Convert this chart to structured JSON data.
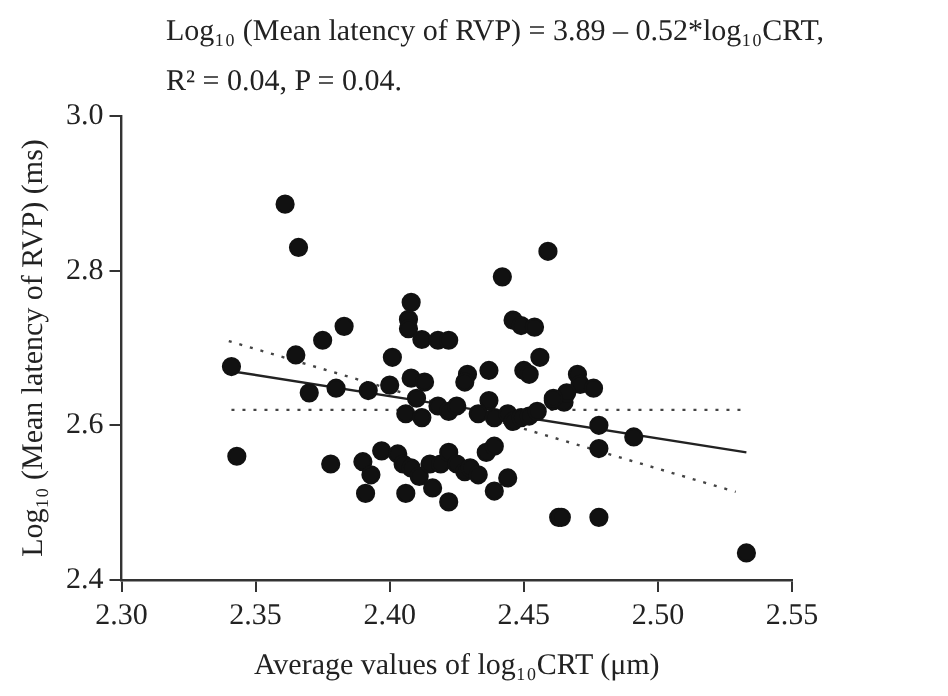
{
  "chart_data": {
    "type": "scatter",
    "title": "Log₁₀ (Mean latency of RVP) = 3.89 – 0.52*log₁₀CRT,",
    "subtitle": "R² = 0.04, P = 0.04.",
    "xlabel": "Average values of log₁₀CRT (μm)",
    "ylabel": "Log₁₀ (Mean latency of RVP) (ms)",
    "xlim": [
      2.3,
      2.55
    ],
    "xticks": [
      {
        "value": 2.3,
        "label": "2.30"
      },
      {
        "value": 2.35,
        "label": "2.35"
      },
      {
        "value": 2.4,
        "label": "2.40"
      },
      {
        "value": 2.45,
        "label": "2.45"
      },
      {
        "value": 2.5,
        "label": "2.50"
      },
      {
        "value": 2.55,
        "label": "2.55"
      }
    ],
    "ylim": [
      2.4,
      3.0
    ],
    "yticks": [
      {
        "value": 2.4,
        "label": "2.4"
      },
      {
        "value": 2.6,
        "label": "2.6"
      },
      {
        "value": 2.8,
        "label": "2.8"
      },
      {
        "value": 3.0,
        "label": "3.0"
      }
    ],
    "grid": false,
    "legend": false,
    "series": [
      {
        "type": "scatter",
        "marker": "circle",
        "color": "#111111",
        "x": [
          2.361,
          2.366,
          2.341,
          2.343,
          2.365,
          2.375,
          2.383,
          2.37,
          2.38,
          2.378,
          2.392,
          2.4,
          2.401,
          2.408,
          2.407,
          2.407,
          2.412,
          2.418,
          2.422,
          2.408,
          2.413,
          2.41,
          2.406,
          2.412,
          2.418,
          2.422,
          2.425,
          2.429,
          2.428,
          2.437,
          2.446,
          2.449,
          2.454,
          2.456,
          2.45,
          2.452,
          2.442,
          2.459,
          2.463,
          2.437,
          2.433,
          2.439,
          2.444,
          2.446,
          2.449,
          2.452,
          2.455,
          2.461,
          2.465,
          2.39,
          2.393,
          2.397,
          2.403,
          2.405,
          2.408,
          2.411,
          2.415,
          2.419,
          2.422,
          2.425,
          2.428,
          2.43,
          2.433,
          2.436,
          2.439,
          2.444,
          2.391,
          2.406,
          2.416,
          2.422,
          2.439,
          2.47,
          2.471,
          2.476,
          2.466,
          2.461,
          2.478,
          2.478,
          2.491,
          2.464,
          2.478,
          2.533
        ],
        "values": [
          2.886,
          2.83,
          2.676,
          2.56,
          2.691,
          2.71,
          2.728,
          2.642,
          2.648,
          2.55,
          2.645,
          2.652,
          2.688,
          2.759,
          2.737,
          2.725,
          2.711,
          2.71,
          2.71,
          2.661,
          2.656,
          2.635,
          2.615,
          2.61,
          2.625,
          2.618,
          2.625,
          2.666,
          2.656,
          2.671,
          2.736,
          2.729,
          2.727,
          2.688,
          2.671,
          2.666,
          2.792,
          2.825,
          2.481,
          2.632,
          2.615,
          2.61,
          2.615,
          2.605,
          2.61,
          2.612,
          2.618,
          2.632,
          2.63,
          2.553,
          2.536,
          2.567,
          2.563,
          2.55,
          2.545,
          2.534,
          2.55,
          2.55,
          2.565,
          2.55,
          2.54,
          2.545,
          2.536,
          2.565,
          2.573,
          2.532,
          2.512,
          2.512,
          2.519,
          2.501,
          2.515,
          2.666,
          2.653,
          2.648,
          2.642,
          2.635,
          2.6,
          2.57,
          2.585,
          2.481,
          2.481,
          2.435
        ]
      },
      {
        "type": "line",
        "marker": "none",
        "line_style": "solid",
        "color": "#222222",
        "x": [
          2.341,
          2.533
        ],
        "values": [
          2.67,
          2.565
        ]
      },
      {
        "type": "line",
        "marker": "none",
        "line_style": "dotted",
        "color": "#444444",
        "x": [
          2.341,
          2.533
        ],
        "values": [
          2.62,
          2.62
        ]
      },
      {
        "type": "line",
        "marker": "none",
        "line_style": "dotted",
        "color": "#444444",
        "x": [
          2.34,
          2.529
        ],
        "values": [
          2.709,
          2.514
        ]
      }
    ]
  }
}
